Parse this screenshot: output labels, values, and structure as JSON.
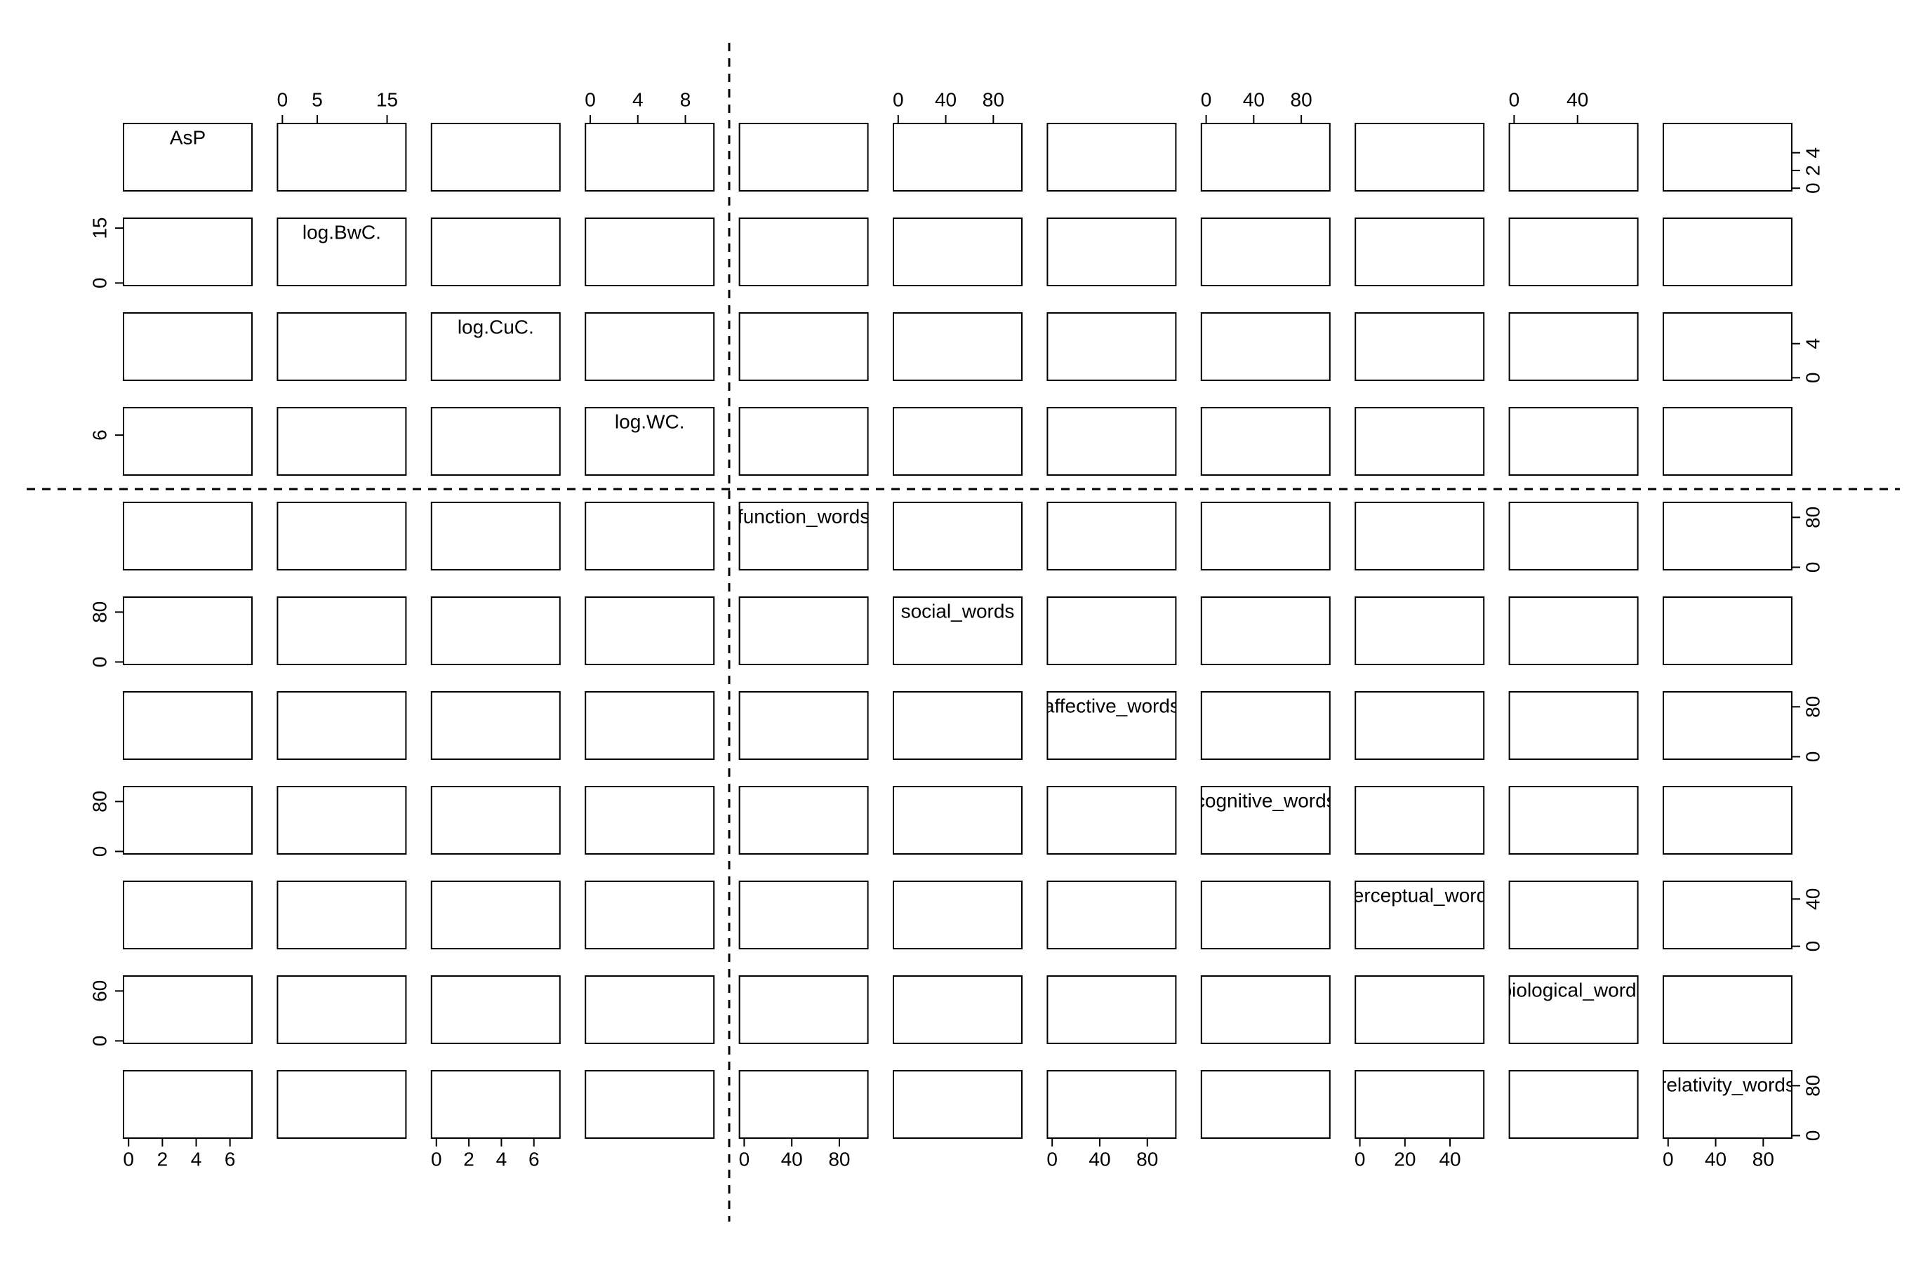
{
  "chart_data": {
    "type": "scatter_matrix",
    "variables": [
      {
        "name": "AsP",
        "lim": [
          -0.3,
          7.3
        ],
        "xticks": [
          0,
          2,
          4,
          6
        ],
        "yticks": [
          0,
          2,
          4
        ]
      },
      {
        "name": "log.BwC.",
        "lim": [
          -0.7,
          17.7
        ],
        "xticks": [
          0,
          5,
          15
        ],
        "yticks": [
          0,
          15
        ]
      },
      {
        "name": "log.CuC.",
        "lim": [
          -0.3,
          7.6
        ],
        "xticks": [
          0,
          2,
          4,
          6
        ],
        "yticks": [
          0,
          4
        ]
      },
      {
        "name": "log.WC.",
        "lim": [
          -0.4,
          10.4
        ],
        "xticks": [
          0,
          4,
          8
        ],
        "yticks": [
          6
        ]
      },
      {
        "name": "function_words",
        "lim": [
          -4,
          104
        ],
        "xticks": [
          0,
          40,
          80
        ],
        "yticks": [
          0,
          80
        ]
      },
      {
        "name": "social_words",
        "lim": [
          -4,
          104
        ],
        "xticks": [
          0,
          40,
          80
        ],
        "yticks": [
          0,
          80
        ]
      },
      {
        "name": "affective_words",
        "lim": [
          -4,
          104
        ],
        "xticks": [
          0,
          40,
          80
        ],
        "yticks": [
          0,
          80
        ]
      },
      {
        "name": "cognitive_words",
        "lim": [
          -4,
          104
        ],
        "xticks": [
          0,
          40,
          80
        ],
        "yticks": [
          0,
          80
        ]
      },
      {
        "name": "perceptual_words",
        "lim": [
          -2,
          55
        ],
        "xticks": [
          0,
          20,
          40
        ],
        "yticks": [
          0,
          40
        ]
      },
      {
        "name": "biological_words",
        "lim": [
          -3,
          78
        ],
        "xticks": [
          0,
          40
        ],
        "yticks": [
          0,
          60
        ]
      },
      {
        "name": "relativity_words",
        "lim": [
          -4,
          104
        ],
        "xticks": [
          0,
          40,
          80
        ],
        "yticks": [
          0,
          80
        ]
      }
    ]
  }
}
